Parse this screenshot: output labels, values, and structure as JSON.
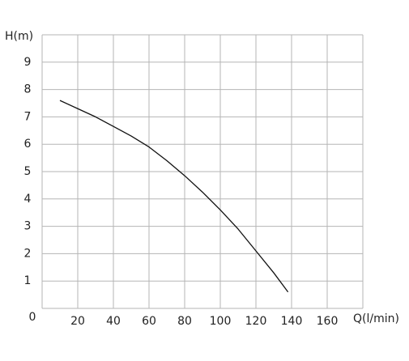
{
  "chart_data": {
    "type": "line",
    "x_label": "Q(l/min)",
    "y_label": "H(m)",
    "x": [
      10,
      20,
      30,
      40,
      50,
      60,
      70,
      80,
      90,
      100,
      110,
      120,
      130,
      138
    ],
    "series": [
      {
        "name": "H",
        "color": "#111111",
        "values": [
          7.6,
          7.3,
          7.0,
          6.65,
          6.3,
          5.9,
          5.4,
          4.85,
          4.25,
          3.6,
          2.9,
          2.1,
          1.3,
          0.6
        ]
      }
    ],
    "xlim": [
      0,
      180
    ],
    "ylim": [
      0,
      10
    ],
    "xticks": [
      0,
      20,
      40,
      60,
      80,
      100,
      120,
      140,
      160
    ],
    "yticks": [
      0,
      1,
      2,
      3,
      4,
      5,
      6,
      7,
      8,
      9
    ],
    "grid": true
  }
}
